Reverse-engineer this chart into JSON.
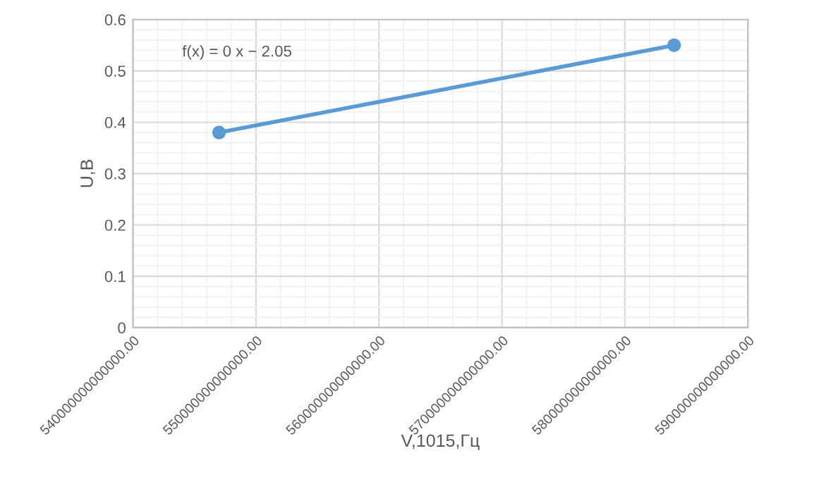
{
  "chart_data": {
    "type": "line",
    "xlabel": "V,1015,Гц",
    "ylabel": "U,B",
    "x": [
      547000000000000,
      584000000000000
    ],
    "series": [
      {
        "color": "#5b9bd5",
        "values": [
          0.38,
          0.55
        ]
      }
    ],
    "xlim": [
      540000000000000,
      590000000000000
    ],
    "xticks": [
      {
        "value": 540000000000000,
        "label": "540000000000000.00"
      },
      {
        "value": 550000000000000,
        "label": "550000000000000.00"
      },
      {
        "value": 560000000000000,
        "label": "560000000000000.00"
      },
      {
        "value": 570000000000000,
        "label": "570000000000000.00"
      },
      {
        "value": 580000000000000,
        "label": "580000000000000.00"
      },
      {
        "value": 590000000000000,
        "label": "590000000000000.00"
      }
    ],
    "ylim": [
      0,
      0.6
    ],
    "yticks": [
      {
        "value": 0,
        "label": "0"
      },
      {
        "value": 0.1,
        "label": "0.1"
      },
      {
        "value": 0.2,
        "label": "0.2"
      },
      {
        "value": 0.3,
        "label": "0.3"
      },
      {
        "value": 0.4,
        "label": "0.4"
      },
      {
        "value": 0.5,
        "label": "0.5"
      },
      {
        "value": 0.6,
        "label": "0.6"
      }
    ],
    "annotations": [
      "f(x) = 0 x − 2.05"
    ],
    "grid": true,
    "marker": "circle",
    "line_style": "solid"
  }
}
